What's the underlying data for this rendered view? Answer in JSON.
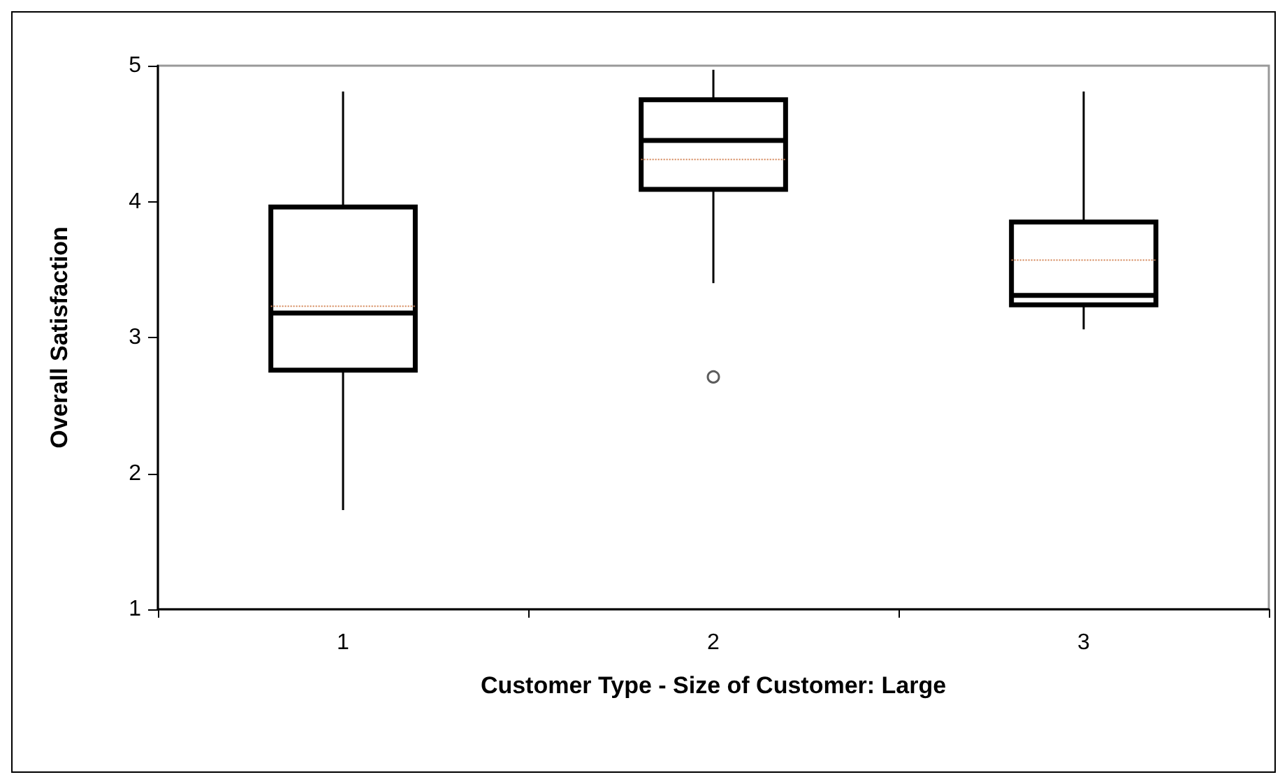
{
  "chart_data": {
    "type": "box",
    "xlabel": "Customer Type - Size of Customer: Large",
    "ylabel": "Overall Satisfaction",
    "categories": [
      "1",
      "2",
      "3"
    ],
    "color": "#000000",
    "boxes": [
      {
        "low": 1.73,
        "q1": 2.76,
        "median": 3.18,
        "q3": 3.96,
        "high": 4.81,
        "mean": 3.23
      },
      {
        "low": 3.4,
        "q1": 4.09,
        "median": 4.45,
        "q3": 4.75,
        "high": 4.97,
        "mean": 4.31,
        "outliers": [
          2.71
        ]
      },
      {
        "low": 3.06,
        "q1": 3.24,
        "median": 3.31,
        "q3": 3.85,
        "high": 4.81,
        "mean": 3.57
      }
    ],
    "ylim": [
      1,
      5
    ],
    "yticks": [
      1,
      2,
      3,
      4,
      5
    ],
    "grid": false
  }
}
